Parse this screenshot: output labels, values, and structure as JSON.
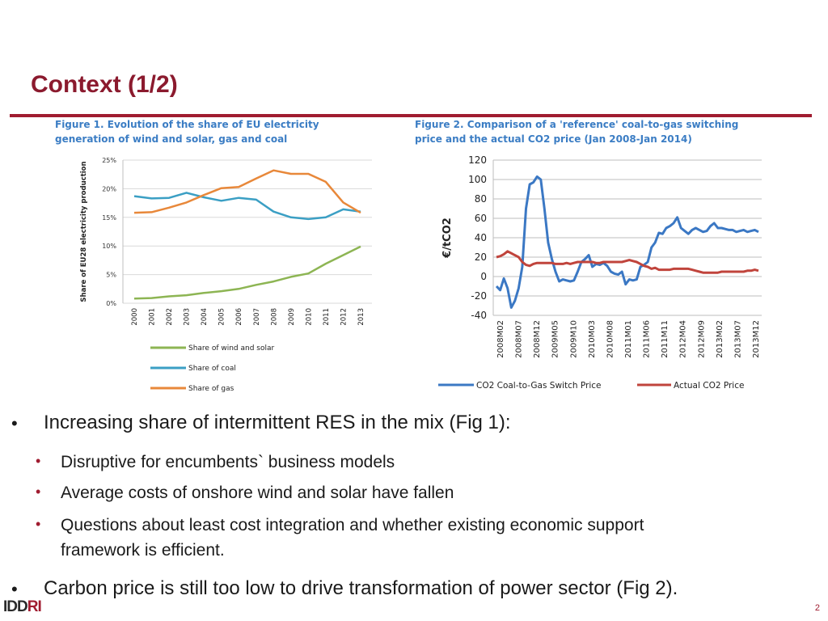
{
  "slide": {
    "title": "Context (1/2)",
    "page_number": "2",
    "logo_text_a": "IDD",
    "logo_text_b": "RI"
  },
  "fig1": {
    "caption_line1": "Figure 1. Evolution of the share of EU electricity",
    "caption_line2": "generation of wind and solar, gas and coal"
  },
  "fig2": {
    "caption_line1": "Figure 2. Comparison of a 'reference' coal-to-gas switching",
    "caption_line2": "price and the actual CO2 price (Jan 2008-Jan 2014)"
  },
  "bullets": {
    "main1": "Increasing share of intermittent RES in the mix (Fig 1):",
    "sub1": "Disruptive for encumbents` business models",
    "sub2": "Average costs of onshore wind and solar have fallen",
    "sub3a": "Questions about least cost integration and whether existing economic support",
    "sub3b": "framework is efficient.",
    "main2": "Carbon price is still too low to drive transformation of power sector  (Fig 2)."
  },
  "chart_data": [
    {
      "type": "line",
      "ylabel": "Share of EU28 electricity production",
      "x": [
        "2000",
        "2001",
        "2002",
        "2003",
        "2004",
        "2005",
        "2006",
        "2007",
        "2008",
        "2009",
        "2010",
        "2011",
        "2012",
        "2013"
      ],
      "yticks": [
        "0%",
        "5%",
        "10%",
        "15%",
        "20%",
        "25%"
      ],
      "ylim": [
        0,
        25
      ],
      "grid": true,
      "legend_position": "bottom",
      "series": [
        {
          "name": "Share of wind and solar",
          "color": "#8db553",
          "values": [
            0.8,
            0.9,
            1.2,
            1.4,
            1.8,
            2.1,
            2.5,
            3.2,
            3.8,
            4.6,
            5.2,
            6.9,
            8.4,
            9.9
          ]
        },
        {
          "name": "Share of coal",
          "color": "#3b9fc4",
          "values": [
            18.7,
            18.3,
            18.4,
            19.3,
            18.5,
            17.9,
            18.4,
            18.1,
            16.0,
            15.0,
            14.7,
            15.0,
            16.4,
            16.0
          ]
        },
        {
          "name": "Share of gas",
          "color": "#e8883a",
          "values": [
            15.8,
            15.9,
            16.7,
            17.6,
            18.9,
            20.1,
            20.3,
            21.8,
            23.2,
            22.6,
            22.6,
            21.2,
            17.6,
            15.8
          ]
        }
      ]
    },
    {
      "type": "line",
      "ylabel": "€/tCO2",
      "ylim": [
        -40,
        120
      ],
      "yticks": [
        "-40",
        "-20",
        "0",
        "20",
        "40",
        "60",
        "80",
        "100",
        "120"
      ],
      "xticks": [
        "2008M02",
        "2008M07",
        "2008M12",
        "2009M05",
        "2009M10",
        "2010M03",
        "2010M08",
        "2011M01",
        "2011M06",
        "2011M11",
        "2012M04",
        "2012M09",
        "2013M02",
        "2013M07",
        "2013M12"
      ],
      "grid": true,
      "legend_position": "bottom",
      "series": [
        {
          "name": "CO2 Coal-to-Gas Switch Price",
          "color": "#3b78c4",
          "values": [
            -10,
            -14,
            -2,
            -12,
            -32,
            -25,
            -12,
            10,
            70,
            95,
            97,
            103,
            100,
            70,
            35,
            18,
            5,
            -5,
            -3,
            -4,
            -5,
            -4,
            5,
            15,
            18,
            22,
            10,
            13,
            12,
            14,
            11,
            5,
            3,
            2,
            5,
            -8,
            -3,
            -4,
            -3,
            10,
            12,
            15,
            30,
            35,
            45,
            44,
            50,
            52,
            55,
            61,
            50,
            47,
            44,
            48,
            50,
            48,
            46,
            47,
            52,
            55,
            50,
            50,
            49,
            48,
            48,
            46,
            47,
            48,
            46,
            47,
            48,
            46
          ]
        },
        {
          "name": "Actual CO2 Price",
          "color": "#c0443c",
          "values": [
            20,
            21,
            23,
            26,
            24,
            22,
            20,
            15,
            12,
            11,
            13,
            14,
            14,
            14,
            14,
            14,
            13,
            13,
            13,
            14,
            13,
            14,
            15,
            15,
            15,
            15,
            15,
            14,
            14,
            15,
            15,
            15,
            15,
            15,
            15,
            16,
            17,
            16,
            15,
            13,
            11,
            10,
            8,
            9,
            7,
            7,
            7,
            7,
            8,
            8,
            8,
            8,
            8,
            7,
            6,
            5,
            4,
            4,
            4,
            4,
            4,
            5,
            5,
            5,
            5,
            5,
            5,
            5,
            6,
            6,
            7,
            6
          ]
        }
      ]
    }
  ]
}
